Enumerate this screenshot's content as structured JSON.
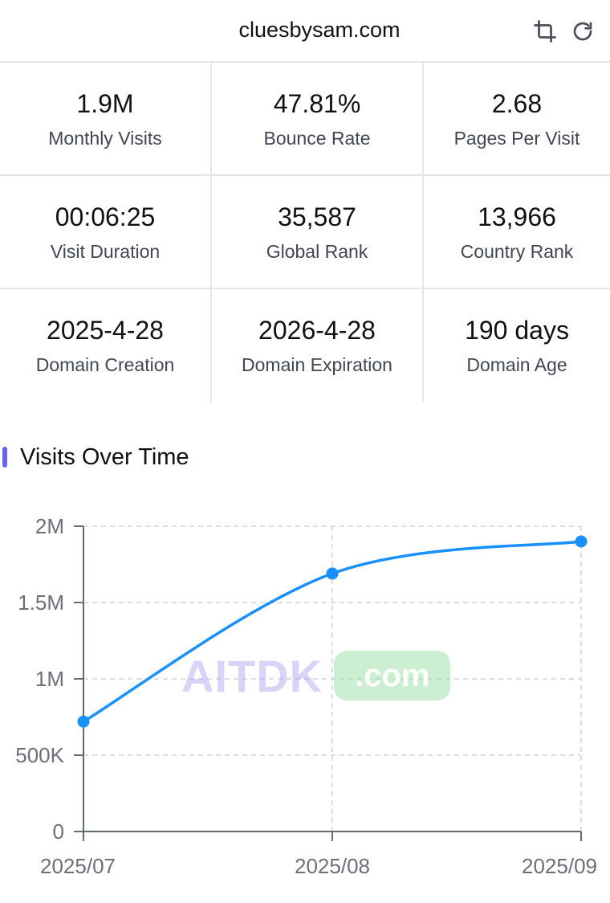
{
  "header": {
    "domain": "cluesbysam.com",
    "crop_icon": "crop-icon",
    "refresh_icon": "refresh-icon"
  },
  "stats": [
    [
      {
        "value": "1.9M",
        "label": "Monthly Visits"
      },
      {
        "value": "47.81%",
        "label": "Bounce Rate"
      },
      {
        "value": "2.68",
        "label": "Pages Per Visit"
      }
    ],
    [
      {
        "value": "00:06:25",
        "label": "Visit Duration"
      },
      {
        "value": "35,587",
        "label": "Global Rank"
      },
      {
        "value": "13,966",
        "label": "Country Rank"
      }
    ],
    [
      {
        "value": "2025-4-28",
        "label": "Domain Creation"
      },
      {
        "value": "2026-4-28",
        "label": "Domain Expiration"
      },
      {
        "value": "190 days",
        "label": "Domain Age"
      }
    ]
  ],
  "section": {
    "title": "Visits Over Time",
    "accent": "#6366f1"
  },
  "watermark": {
    "text": "AITDK",
    "suffix": ".com"
  },
  "chart_data": {
    "type": "line",
    "categories": [
      "2025/07",
      "2025/08",
      "2025/09"
    ],
    "values": [
      720000,
      1690000,
      1900000
    ],
    "ylim": [
      0,
      2000000
    ],
    "yticks": [
      0,
      500000,
      1000000,
      1500000,
      2000000
    ],
    "yticklabels": [
      "0",
      "500K",
      "1M",
      "1.5M",
      "2M"
    ],
    "grid": true,
    "line_color": "#1890ff"
  }
}
